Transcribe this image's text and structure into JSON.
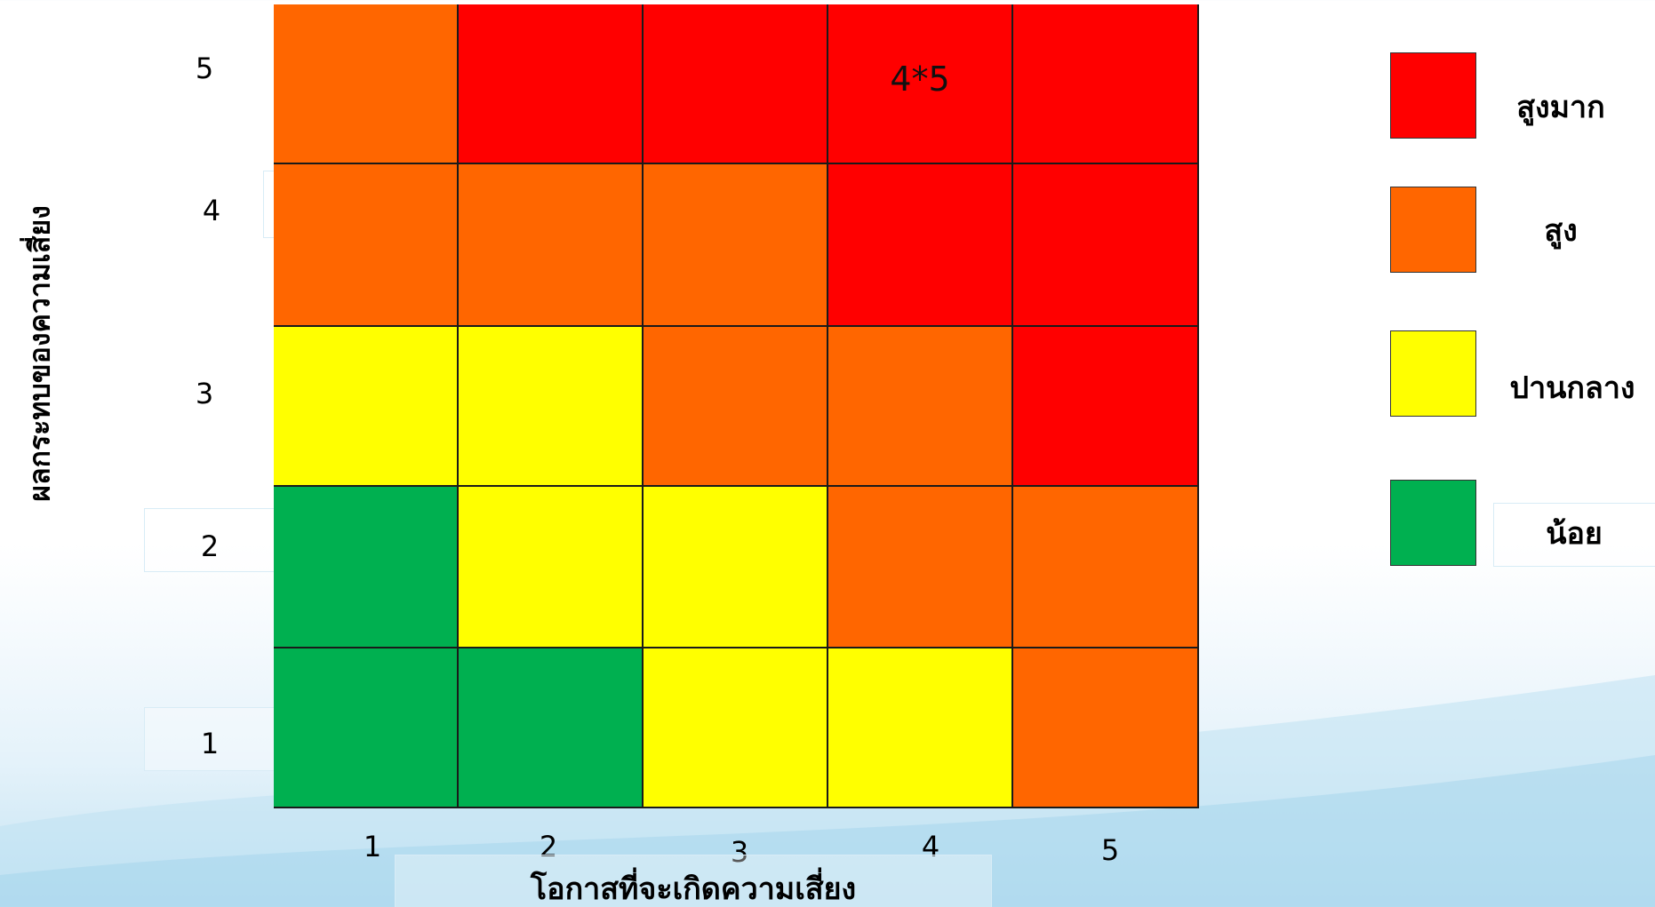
{
  "chart_data": {
    "type": "heatmap",
    "xlabel": "โอกาสที่จะเกิดความเสี่ยง",
    "ylabel": "ผลกระทบของความเสี่ยง",
    "x": [
      "1",
      "2",
      "3",
      "4",
      "5"
    ],
    "y": [
      "5",
      "4",
      "3",
      "2",
      "1"
    ],
    "levels": [
      [
        "สูง",
        "สูงมาก",
        "สูงมาก",
        "สูงมาก",
        "สูงมาก"
      ],
      [
        "สูง",
        "สูง",
        "สูง",
        "สูงมาก",
        "สูงมาก"
      ],
      [
        "ปานกลาง",
        "ปานกลาง",
        "สูง",
        "สูง",
        "สูงมาก"
      ],
      [
        "น้อย",
        "ปานกลาง",
        "ปานกลาง",
        "สูง",
        "สูง"
      ],
      [
        "น้อย",
        "น้อย",
        "ปานกลาง",
        "ปานกลาง",
        "สูง"
      ]
    ],
    "annotations": [
      {
        "x": "4",
        "y": "5",
        "text": "4*5"
      }
    ],
    "legend": [
      {
        "label": "สูงมาก",
        "color": "#ff0000"
      },
      {
        "label": "สูง",
        "color": "#ff6600"
      },
      {
        "label": "ปานกลาง",
        "color": "#ffff00"
      },
      {
        "label": "น้อย",
        "color": "#00b050"
      }
    ]
  }
}
